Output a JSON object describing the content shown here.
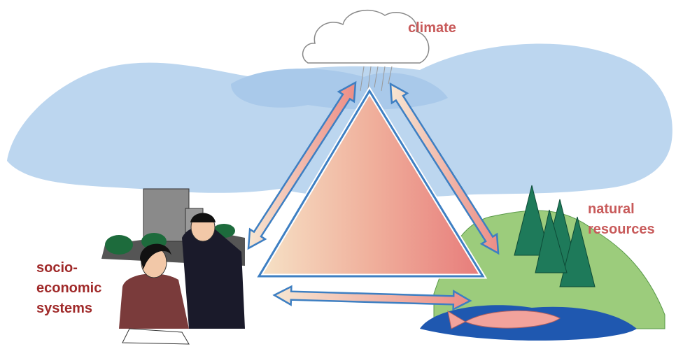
{
  "labels": {
    "climate": "climate",
    "natural_resources": [
      "natural",
      "resources"
    ],
    "socio_economic": [
      "socio-",
      "economic",
      "systems"
    ]
  }
}
